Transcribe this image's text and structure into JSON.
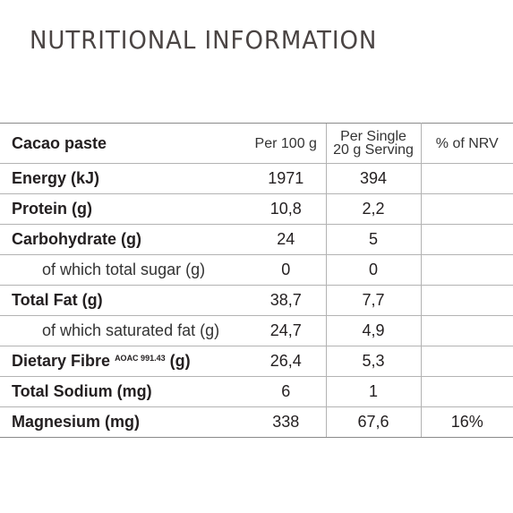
{
  "title": "NUTRITIONAL INFORMATION",
  "table": {
    "product": "Cacao paste",
    "col_per100": "Per 100 g",
    "col_serving_line1": "Per Single",
    "col_serving_line2": "20 g Serving",
    "col_nrv": "% of NRV",
    "rows": [
      {
        "label": "Energy (kJ)",
        "per100": "1971",
        "serving": "394",
        "nrv": ""
      },
      {
        "label": "Protein (g)",
        "per100": "10,8",
        "serving": "2,2",
        "nrv": ""
      },
      {
        "label": "Carbohydrate (g)",
        "per100": "24",
        "serving": "5",
        "nrv": ""
      },
      {
        "label": "of which total sugar (g)",
        "per100": "0",
        "serving": "0",
        "nrv": ""
      },
      {
        "label": "Total Fat (g)",
        "per100": "38,7",
        "serving": "7,7",
        "nrv": ""
      },
      {
        "label": "of which saturated fat (g)",
        "per100": "24,7",
        "serving": "4,9",
        "nrv": ""
      },
      {
        "label_main": "Dietary Fibre",
        "label_sup": "AOAC 991.43",
        "label_unit": "(g)",
        "per100": "26,4",
        "serving": "5,3",
        "nrv": ""
      },
      {
        "label": "Total Sodium (mg)",
        "per100": "6",
        "serving": "1",
        "nrv": ""
      },
      {
        "label": "Magnesium (mg)",
        "per100": "338",
        "serving": "67,6",
        "nrv": "16%"
      }
    ]
  }
}
